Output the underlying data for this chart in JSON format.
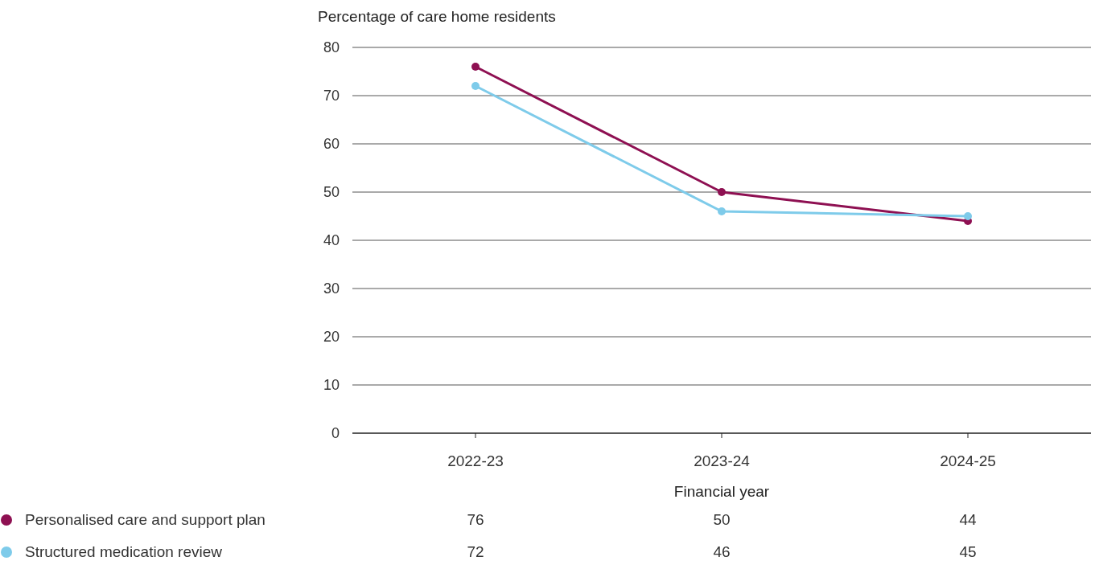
{
  "chart_data": {
    "type": "line",
    "ylabel": "Percentage of care home residents",
    "xlabel": "Financial year",
    "categories": [
      "2022-23",
      "2023-24",
      "2024-25"
    ],
    "series": [
      {
        "name": "Personalised care and support plan",
        "color": "#8e1052",
        "values": [
          76,
          50,
          44
        ]
      },
      {
        "name": "Structured medication review",
        "color": "#7ecbea",
        "values": [
          72,
          46,
          45
        ]
      }
    ],
    "ylim": [
      0,
      80
    ],
    "yticks": [
      0,
      10,
      20,
      30,
      40,
      50,
      60,
      70,
      80
    ],
    "grid": "y",
    "legend": "bottom left",
    "data_labels": true,
    "marker": "circle",
    "line_style": "solid"
  }
}
